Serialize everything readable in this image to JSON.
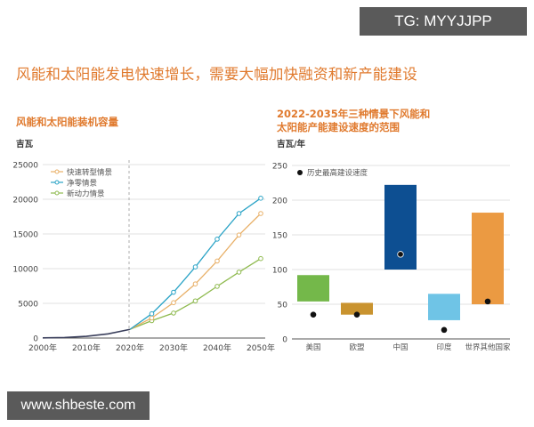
{
  "watermarks": {
    "top": "TG: MYYJJPP",
    "bottom": "www.shbeste.com"
  },
  "title": "风能和太阳能发电快速增长，需要大幅加快融资和新产能建设",
  "colors": {
    "title_orange": "#e07a2e",
    "rapid": "#e8b068",
    "net_zero": "#2aa3c6",
    "new_momentum": "#8fba4f",
    "historical_line": "#3a3f5c",
    "us": "#74b84a",
    "eu": "#c9932f",
    "china": "#0d4f92",
    "india": "#6fc4e6",
    "rest_of_world": "#eb9a42",
    "dot": "#111111"
  },
  "left_chart": {
    "title": "风能和太阳能装机容量",
    "unit": "吉瓦",
    "y_ticks": [
      "0",
      "5000",
      "10000",
      "15000",
      "20000",
      "25000"
    ],
    "x_ticks": [
      "2000年",
      "2010年",
      "2020年",
      "2030年",
      "2040年",
      "2050年"
    ],
    "legend": [
      "快速转型情景",
      "净零情景",
      "新动力情景"
    ]
  },
  "right_chart": {
    "title_line1": "2022-2035年三种情景下风能和",
    "title_line2": "太阳能产能建设速度的范围",
    "unit": "吉瓦/年",
    "y_ticks": [
      "0",
      "50",
      "100",
      "150",
      "200",
      "250"
    ],
    "categories": [
      "美国",
      "欧盟",
      "中国",
      "印度",
      "世界其他国家"
    ],
    "legend": "历史最高建设速度"
  },
  "chart_data": [
    {
      "type": "line",
      "title": "风能和太阳能装机容量",
      "xlabel": "",
      "ylabel": "吉瓦",
      "ylim": [
        0,
        25000
      ],
      "xlim": [
        2000,
        2050
      ],
      "grid": true,
      "legend_position": "top-left",
      "annotations": [
        "vertical dashed line at 2020"
      ],
      "historical": {
        "name": "历史",
        "x": [
          2000,
          2005,
          2010,
          2015,
          2020
        ],
        "values": [
          20,
          80,
          250,
          600,
          1250
        ]
      },
      "x": [
        2020,
        2025,
        2030,
        2035,
        2040,
        2045,
        2050
      ],
      "series": [
        {
          "name": "快速转型情景",
          "values": [
            1250,
            2900,
            5100,
            7800,
            11100,
            14850,
            17950
          ]
        },
        {
          "name": "净零情景",
          "values": [
            1250,
            3500,
            6600,
            10250,
            14250,
            17950,
            20150
          ]
        },
        {
          "name": "新动力情景",
          "values": [
            1250,
            2500,
            3600,
            5350,
            7450,
            9500,
            11450
          ]
        }
      ]
    },
    {
      "type": "bar",
      "subtype": "floating-range",
      "title": "2022-2035年三种情景下风能和太阳能产能建设速度的范围",
      "xlabel": "",
      "ylabel": "吉瓦/年",
      "ylim": [
        0,
        250
      ],
      "grid": true,
      "legend_position": "top-left",
      "categories": [
        "美国",
        "欧盟",
        "中国",
        "印度",
        "世界其他国家"
      ],
      "series": [
        {
          "name": "range_low",
          "values": [
            54,
            35,
            100,
            27,
            50
          ]
        },
        {
          "name": "range_high",
          "values": [
            92,
            52,
            222,
            65,
            182
          ]
        },
        {
          "name": "历史最高建设速度",
          "values": [
            35,
            35,
            122,
            13,
            54
          ]
        }
      ]
    }
  ]
}
